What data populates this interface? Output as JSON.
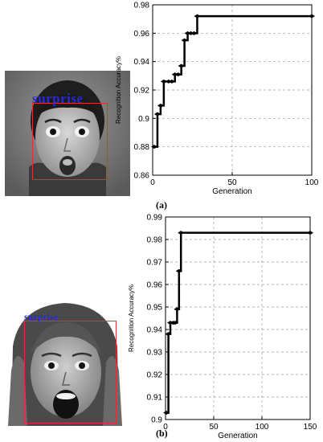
{
  "panels": [
    {
      "label": "(a)",
      "face_caption": "surprise",
      "chart_data": {
        "type": "line",
        "xlabel": "Generation",
        "ylabel": "Recognition Accuracy%",
        "xlim": [
          0,
          100
        ],
        "ylim": [
          0.86,
          0.98
        ],
        "xticks": [
          0,
          50,
          100
        ],
        "yticks": [
          0.86,
          0.88,
          0.9,
          0.92,
          0.94,
          0.96,
          0.98
        ],
        "grid": true,
        "step": true,
        "series": [
          {
            "x": [
              1,
              3,
              5,
              7,
              10,
              12,
              14,
              16,
              18,
              20,
              22,
              24,
              26,
              28,
              100
            ],
            "y": [
              0.88,
              0.903,
              0.909,
              0.926,
              0.926,
              0.926,
              0.931,
              0.931,
              0.937,
              0.955,
              0.96,
              0.96,
              0.96,
              0.972,
              0.972
            ]
          }
        ]
      }
    },
    {
      "label": "(b)",
      "face_caption": "surprise",
      "chart_data": {
        "type": "line",
        "xlabel": "Generation",
        "ylabel": "Recognition Accuracy%",
        "xlim": [
          0,
          150
        ],
        "ylim": [
          0.9,
          0.99
        ],
        "xticks": [
          0,
          50,
          100,
          150
        ],
        "yticks": [
          0.9,
          0.91,
          0.92,
          0.93,
          0.94,
          0.95,
          0.96,
          0.97,
          0.98,
          0.99
        ],
        "grid": true,
        "step": true,
        "series": [
          {
            "x": [
              1,
              3,
              5,
              8,
              10,
              12,
              14,
              16,
              150
            ],
            "y": [
              0.903,
              0.938,
              0.943,
              0.943,
              0.943,
              0.949,
              0.966,
              0.983,
              0.983
            ]
          }
        ]
      }
    }
  ]
}
